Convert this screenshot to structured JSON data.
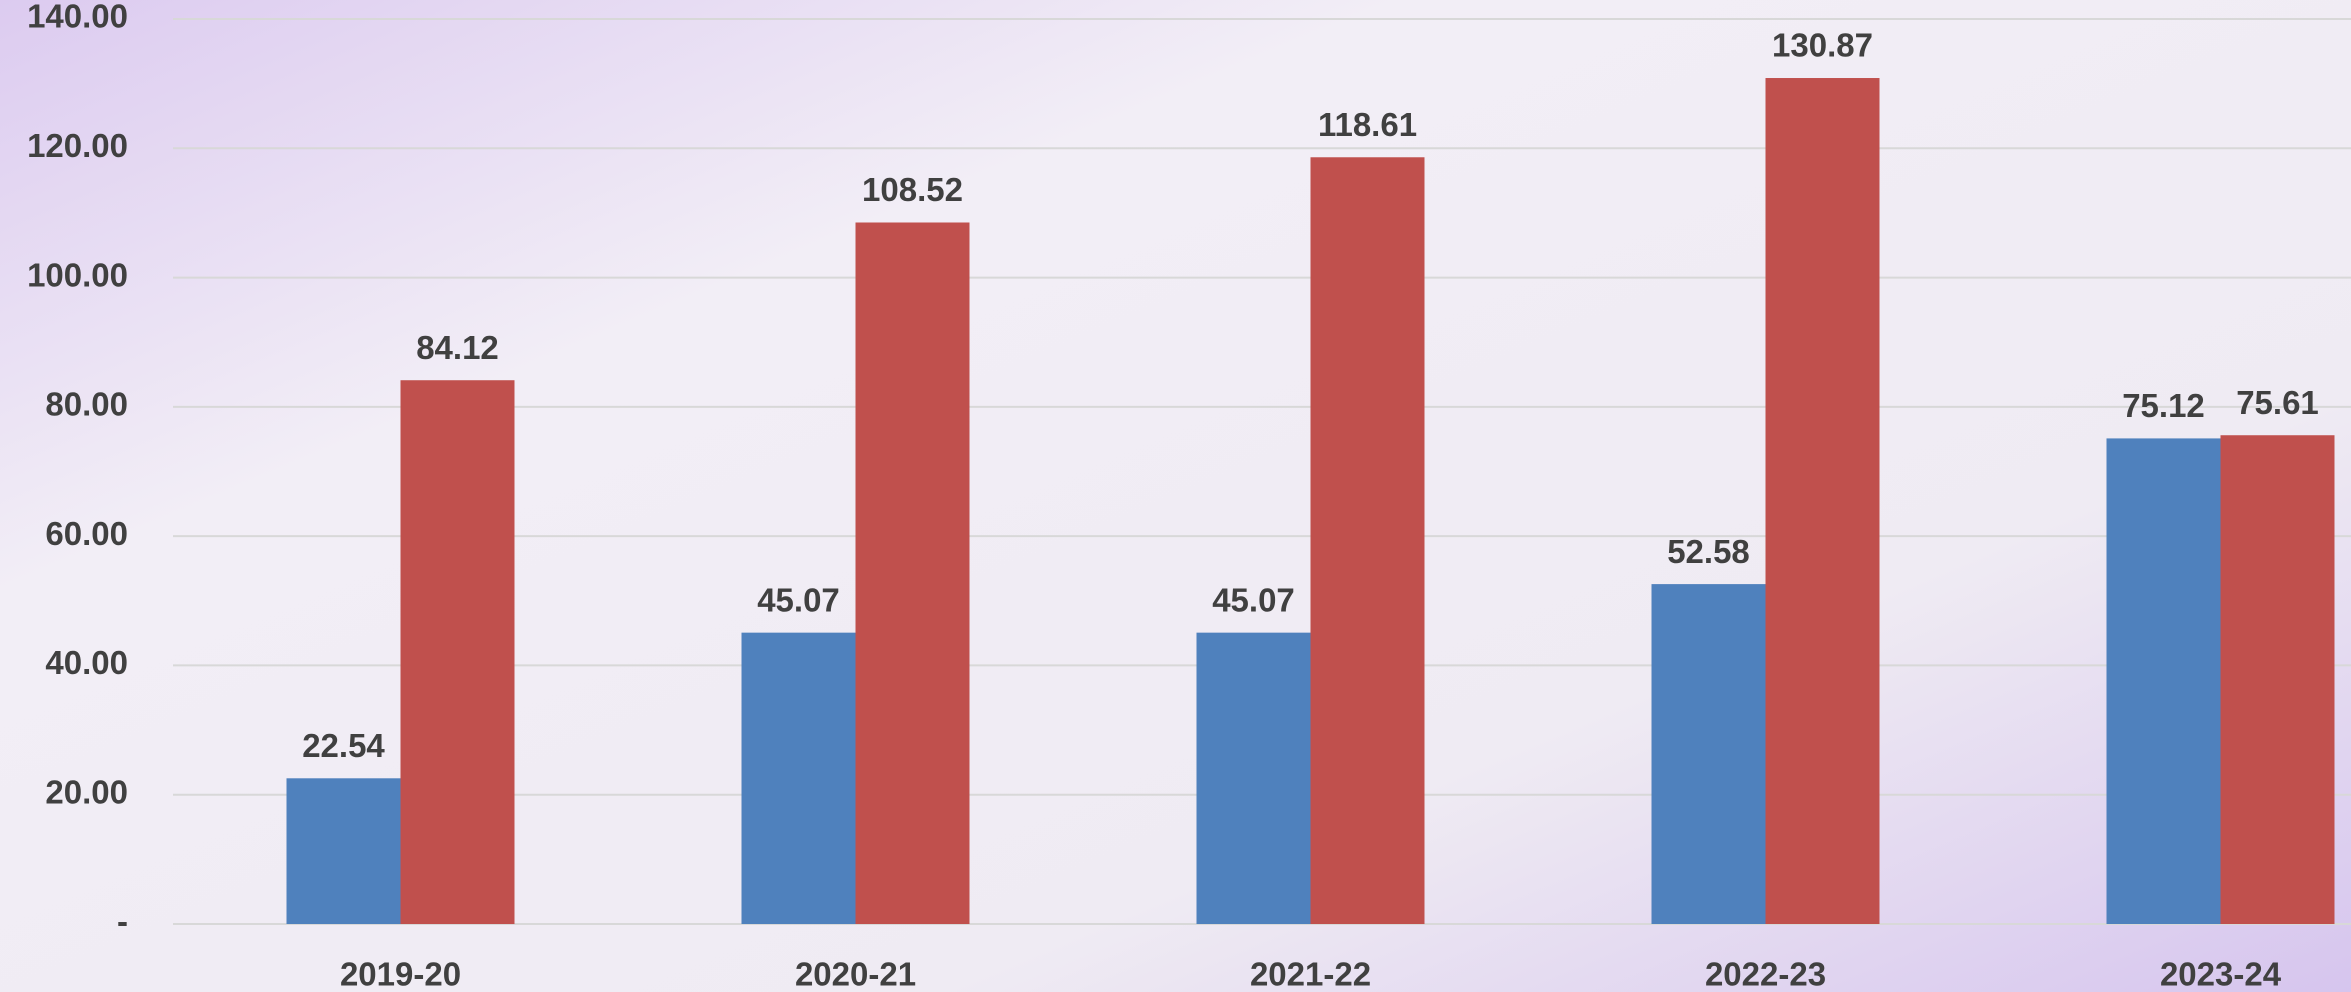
{
  "chart_data": {
    "type": "bar",
    "categories": [
      "2019-20",
      "2020-21",
      "2021-22",
      "2022-23",
      "2023-24"
    ],
    "series": [
      {
        "color": "#4f81bd",
        "values": [
          22.54,
          45.07,
          45.07,
          52.58,
          75.12
        ]
      },
      {
        "color": "#c0504d",
        "values": [
          84.12,
          108.52,
          118.61,
          130.87,
          75.61
        ]
      }
    ],
    "ylim": [
      0,
      140
    ],
    "yticks": [
      {
        "value": 0,
        "label": "-"
      },
      {
        "value": 20,
        "label": "20.00"
      },
      {
        "value": 40,
        "label": "40.00"
      },
      {
        "value": 60,
        "label": "60.00"
      },
      {
        "value": 80,
        "label": "80.00"
      },
      {
        "value": 100,
        "label": "100.00"
      },
      {
        "value": 120,
        "label": "120.00"
      },
      {
        "value": 140,
        "label": "140.00"
      }
    ],
    "grid": true
  }
}
